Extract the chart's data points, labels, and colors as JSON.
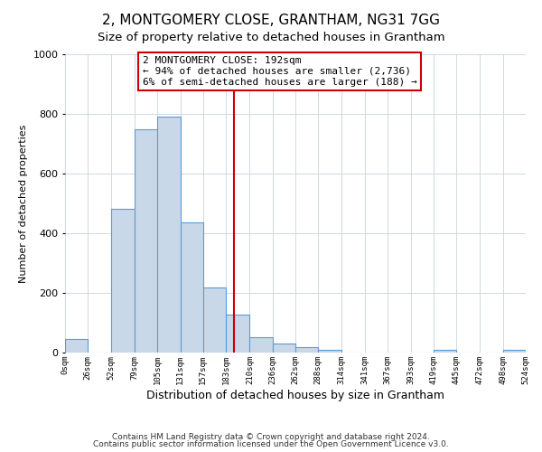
{
  "title": "2, MONTGOMERY CLOSE, GRANTHAM, NG31 7GG",
  "subtitle": "Size of property relative to detached houses in Grantham",
  "xlabel": "Distribution of detached houses by size in Grantham",
  "ylabel": "Number of detached properties",
  "bar_edges": [
    0,
    26,
    52,
    79,
    105,
    131,
    157,
    183,
    210,
    236,
    262,
    288,
    314,
    341,
    367,
    393,
    419,
    445,
    472,
    498,
    524
  ],
  "bar_heights": [
    44,
    0,
    483,
    750,
    790,
    435,
    217,
    127,
    52,
    30,
    18,
    10,
    0,
    0,
    0,
    0,
    8,
    0,
    0,
    8
  ],
  "bar_color": "#c8d8e8",
  "bar_edge_color": "#5b9bd5",
  "property_line_x": 192,
  "property_line_color": "#cc0000",
  "annotation_text": "2 MONTGOMERY CLOSE: 192sqm\n← 94% of detached houses are smaller (2,736)\n6% of semi-detached houses are larger (188) →",
  "ylim": [
    0,
    1000
  ],
  "xlim": [
    0,
    524
  ],
  "tick_labels": [
    "0sqm",
    "26sqm",
    "52sqm",
    "79sqm",
    "105sqm",
    "131sqm",
    "157sqm",
    "183sqm",
    "210sqm",
    "236sqm",
    "262sqm",
    "288sqm",
    "314sqm",
    "341sqm",
    "367sqm",
    "393sqm",
    "419sqm",
    "445sqm",
    "472sqm",
    "498sqm",
    "524sqm"
  ],
  "tick_positions": [
    0,
    26,
    52,
    79,
    105,
    131,
    157,
    183,
    210,
    236,
    262,
    288,
    314,
    341,
    367,
    393,
    419,
    445,
    472,
    498,
    524
  ],
  "footer_line1": "Contains HM Land Registry data © Crown copyright and database right 2024.",
  "footer_line2": "Contains public sector information licensed under the Open Government Licence v3.0.",
  "background_color": "#ffffff",
  "grid_color": "#d0d8e0",
  "title_fontsize": 11,
  "subtitle_fontsize": 9.5,
  "xlabel_fontsize": 9,
  "ylabel_fontsize": 8,
  "tick_fontsize": 6.5,
  "annotation_fontsize": 8,
  "footer_fontsize": 6.5,
  "ytick_fontsize": 8
}
